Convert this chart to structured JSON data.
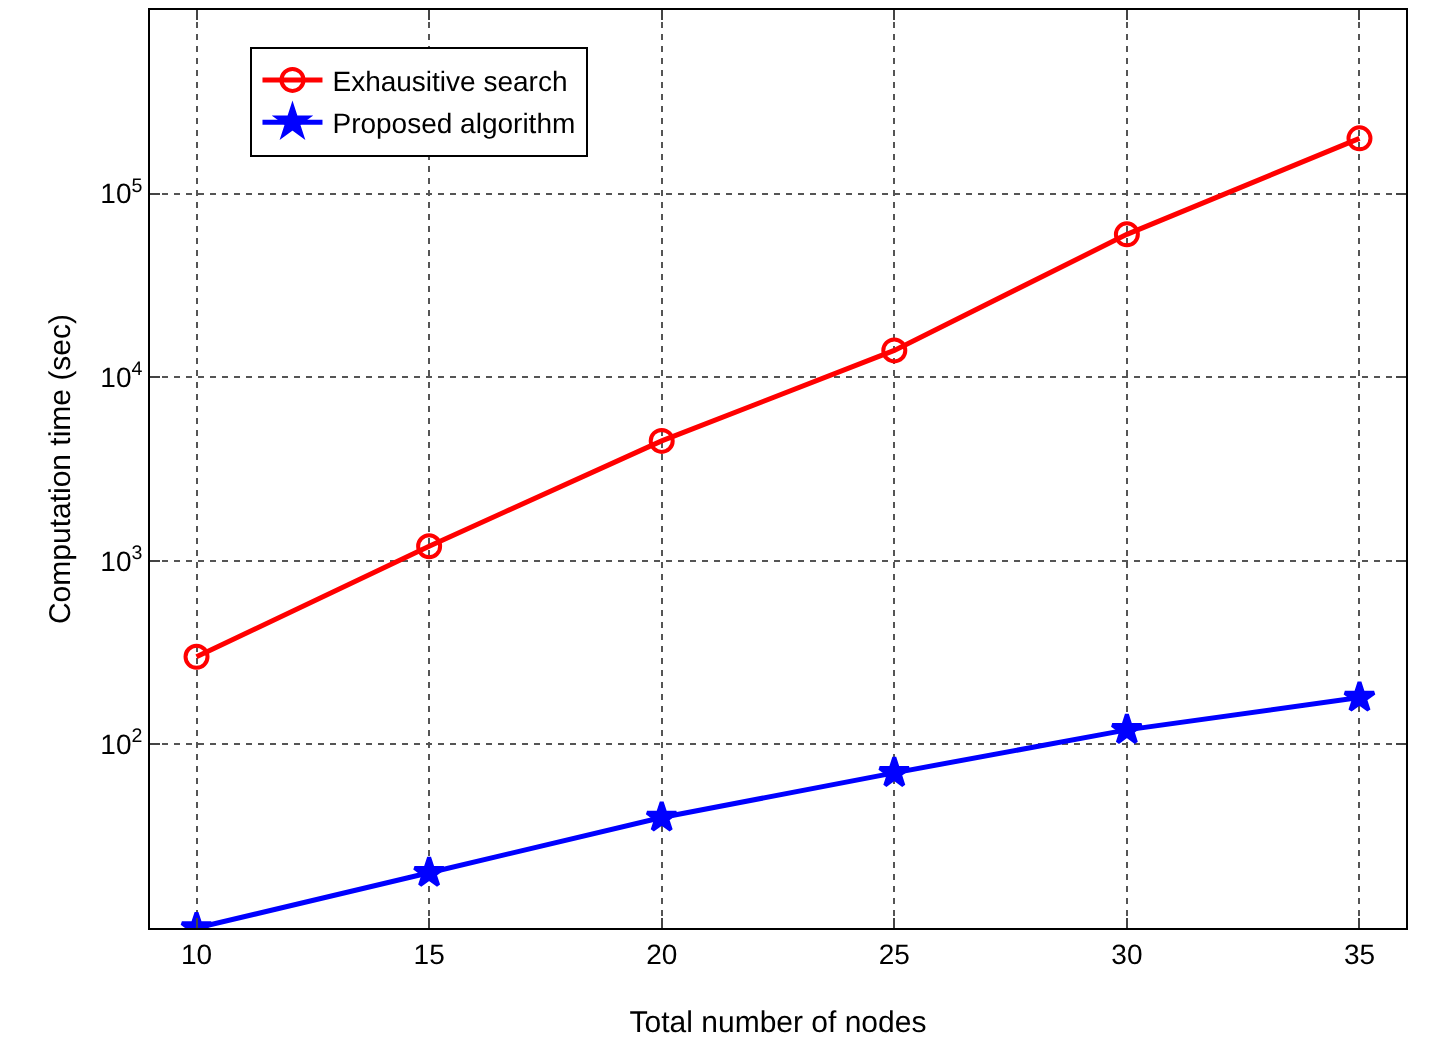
{
  "chart_data": {
    "type": "line",
    "xlabel": "Total number of nodes",
    "ylabel": "Computation time (sec)",
    "x": [
      10,
      15,
      20,
      25,
      30,
      35
    ],
    "series": [
      {
        "name": "Exhausitive search",
        "color": "#ff0000",
        "marker": "circle",
        "values": [
          300,
          1200,
          4500,
          14000,
          60000,
          200000
        ]
      },
      {
        "name": "Proposed algorithm",
        "color": "#0000ff",
        "marker": "star",
        "values": [
          10,
          20,
          40,
          70,
          120,
          180
        ]
      }
    ],
    "log": "y",
    "xlim": [
      9,
      36
    ],
    "ylim": [
      10,
      1000000
    ],
    "xticks": [
      10,
      15,
      20,
      25,
      30,
      35
    ],
    "yticks": [
      {
        "value": 100,
        "label": "10$^{2}$"
      },
      {
        "value": 1000,
        "label": "10$^{3}$"
      },
      {
        "value": 10000,
        "label": "10$^{4}$"
      },
      {
        "value": 100000,
        "label": "10$^{5}$"
      }
    ],
    "grid": true,
    "legend": "top left",
    "line_style": "solid"
  }
}
